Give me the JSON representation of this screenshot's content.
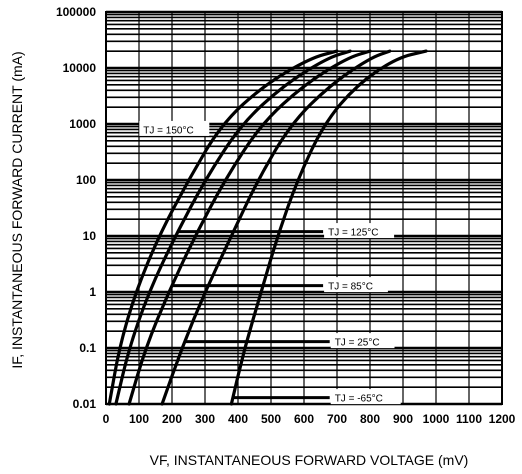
{
  "chart_data": {
    "type": "line",
    "x_scale": "linear",
    "y_scale": "log",
    "xlim": [
      0,
      1200
    ],
    "ylim": [
      0.01,
      100000
    ],
    "grid": true,
    "xlabel": "VF, INSTANTANEOUS FORWARD VOLTAGE (mV)",
    "ylabel": "IF, INSTANTANEOUS FORWARD CURRENT (mA)",
    "x_ticks": [
      "0",
      "100",
      "200",
      "300",
      "400",
      "500",
      "600",
      "700",
      "800",
      "900",
      "1000",
      "1100",
      "1200"
    ],
    "y_ticks": [
      "0.01",
      "0.1",
      "1",
      "10",
      "100",
      "1000",
      "10000",
      "100000"
    ],
    "series": [
      {
        "name": "TJ = 150°C",
        "x": [
          10,
          40,
          90,
          160,
          250,
          350,
          480,
          620,
          700
        ],
        "y": [
          0.01,
          0.1,
          1,
          10,
          100,
          1000,
          5000,
          15000,
          20000
        ]
      },
      {
        "name": "TJ = 125°C",
        "x": [
          30,
          70,
          130,
          210,
          300,
          410,
          540,
          670,
          740
        ],
        "y": [
          0.01,
          0.1,
          1,
          10,
          100,
          1000,
          5000,
          15000,
          20000
        ]
      },
      {
        "name": "TJ = 85°C",
        "x": [
          70,
          120,
          190,
          270,
          360,
          470,
          600,
          730,
          800
        ],
        "y": [
          0.01,
          0.1,
          1,
          10,
          100,
          1000,
          5000,
          15000,
          20000
        ]
      },
      {
        "name": "TJ = 25°C",
        "x": [
          170,
          230,
          300,
          380,
          460,
          560,
          680,
          800,
          860
        ],
        "y": [
          0.01,
          0.1,
          1,
          10,
          100,
          1000,
          5000,
          15000,
          20000
        ]
      },
      {
        "name": "TJ = -65°C",
        "x": [
          380,
          420,
          470,
          520,
          580,
          660,
          760,
          880,
          970
        ],
        "y": [
          0.01,
          0.1,
          1,
          10,
          100,
          1000,
          5000,
          15000,
          20000
        ]
      }
    ],
    "annotations": [
      {
        "text": "TJ = 150°C",
        "x": 110,
        "y": 800
      },
      {
        "text": "TJ = 125°C",
        "x": 670,
        "y": 12
      },
      {
        "text": "TJ = 85°C",
        "x": 670,
        "y": 1.3
      },
      {
        "text": "TJ = 25°C",
        "x": 690,
        "y": 0.13
      },
      {
        "text": "TJ = -65°C",
        "x": 690,
        "y": 0.013
      }
    ]
  },
  "colors": {
    "background": "#ffffff",
    "ink": "#000000"
  }
}
